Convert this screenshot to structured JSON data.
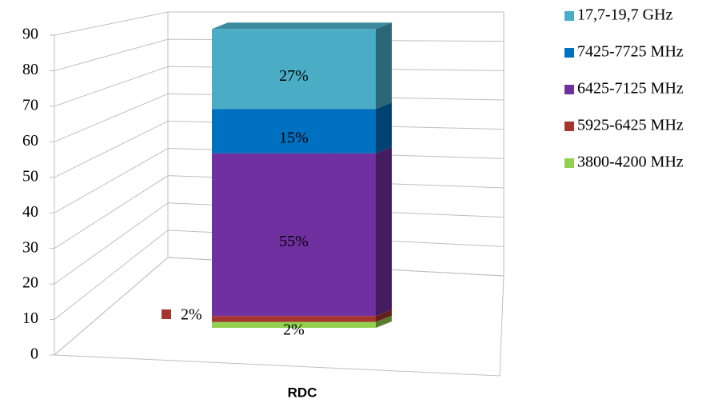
{
  "chart_data": {
    "type": "bar3d-stacked",
    "categories": [
      "RDC"
    ],
    "series": [
      {
        "name": "3800-4200 MHz",
        "color": "#92d050",
        "values": [
          2
        ],
        "value_labels": [
          "2%"
        ]
      },
      {
        "name": "5925-6425 MHz",
        "color": "#a5352e",
        "values": [
          2
        ],
        "value_labels": [
          "2%"
        ]
      },
      {
        "name": "6425-7125 MHz",
        "color": "#7030a0",
        "values": [
          55
        ],
        "value_labels": [
          "55%"
        ]
      },
      {
        "name": "7425-7725 MHz",
        "color": "#0070c0",
        "values": [
          15
        ],
        "value_labels": [
          "15%"
        ]
      },
      {
        "name": "17,7-19,7 GHz",
        "color": "#4bacc6",
        "values": [
          27
        ],
        "value_labels": [
          "27%"
        ]
      }
    ],
    "ylim": [
      0,
      90
    ],
    "yticks": [
      0,
      10,
      20,
      30,
      40,
      50,
      60,
      70,
      80,
      90
    ],
    "grid": true
  }
}
